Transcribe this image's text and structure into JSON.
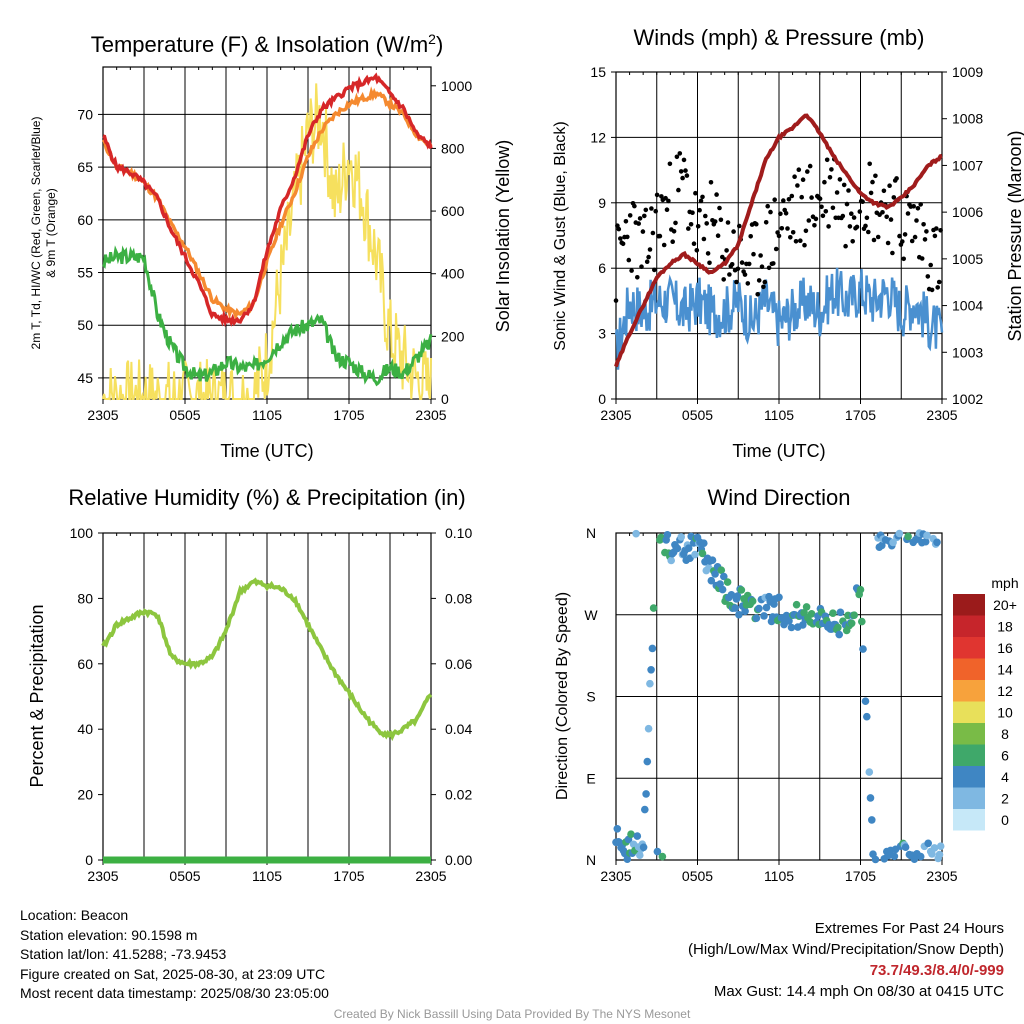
{
  "x_ticks": [
    "2305",
    "0505",
    "1105",
    "1705",
    "2305"
  ],
  "panels": {
    "temperature": {
      "title": "Temperature (F) & Insolation (W/m²)",
      "xlabel": "Time (UTC)",
      "ylabel_left_lines": [
        "2m T, Td, HI/WC (Red, Green, Scarlet/Blue)",
        "& 9m T (Orange)"
      ],
      "ylabel_right": "Solar Insolation (Yellow)"
    },
    "winds": {
      "title": "Winds (mph) & Pressure (mb)",
      "xlabel": "Time (UTC)",
      "ylabel_left": "Sonic Wind & Gust (Blue, Black)",
      "ylabel_right": "Station Pressure (Maroon)"
    },
    "humidity": {
      "title": "Relative Humidity (%) & Precipitation (in)",
      "ylabel_left": "Percent & Precipitation"
    },
    "direction": {
      "title": "Wind Direction",
      "ylabel_left": "Direction (Colored By Speed)",
      "legend_title": "mph"
    }
  },
  "colors": {
    "temp": "#d62728",
    "dewpoint": "#3cb043",
    "temp9m": "#f58a30",
    "solar": "#f6e05e",
    "hi_scarlet": "#c41e1e",
    "wc_blue": "#4a90d0",
    "wind": "#4a90d0",
    "gust": "#000000",
    "pressure": "#a01c1c",
    "rh": "#8dc63f",
    "precip": "#3cb043"
  },
  "chart_data": [
    {
      "type": "line",
      "id": "temperature",
      "title": "Temperature (F) & Insolation (W/m²)",
      "xlabel": "Time (UTC)",
      "x_hours": [
        0,
        1,
        2,
        3,
        4,
        5,
        6,
        7,
        8,
        9,
        10,
        11,
        12,
        13,
        14,
        15,
        16,
        17,
        18,
        19,
        20,
        21,
        22,
        23,
        24
      ],
      "ylim_left": [
        43,
        74.5
      ],
      "yticks_left": [
        45,
        50,
        55,
        60,
        65,
        70
      ],
      "ylim_right": [
        0,
        1060
      ],
      "yticks_right": [
        0,
        200,
        400,
        600,
        800,
        1000
      ],
      "series": [
        {
          "key": "temp",
          "values": [
            68,
            65,
            64.5,
            63.5,
            62,
            59,
            56.5,
            54,
            51,
            50.5,
            50.5,
            52,
            57,
            61,
            64,
            68,
            70.5,
            71.5,
            72.5,
            73,
            73.5,
            72,
            70.5,
            68,
            67
          ]
        },
        {
          "key": "temp9m",
          "values": [
            67.5,
            65,
            64.5,
            63.5,
            62,
            59.5,
            57.5,
            55,
            52.5,
            51.5,
            51,
            52,
            56,
            59.5,
            62.5,
            66,
            68.5,
            70,
            71,
            71.5,
            72,
            71,
            70,
            68,
            67
          ]
        },
        {
          "key": "dewpoint",
          "values": [
            56,
            56.5,
            56.5,
            56.5,
            51,
            48,
            46,
            45,
            45.5,
            46.5,
            46,
            46,
            47,
            48.5,
            49.5,
            50,
            50.5,
            47,
            46.5,
            45.5,
            45,
            46,
            45.5,
            47,
            48.5
          ]
        },
        {
          "key": "solar",
          "values": [
            0,
            0,
            0,
            0,
            0,
            0,
            0,
            0,
            0,
            0,
            0,
            5,
            120,
            380,
            620,
            850,
            900,
            620,
            780,
            650,
            450,
            200,
            120,
            60,
            30
          ]
        }
      ]
    },
    {
      "type": "line",
      "id": "winds",
      "title": "Winds (mph) & Pressure (mb)",
      "xlabel": "Time (UTC)",
      "ylim_left": [
        0,
        15
      ],
      "yticks_left": [
        0,
        3,
        6,
        9,
        12,
        15
      ],
      "ylim_right": [
        1002,
        1009
      ],
      "yticks_right": [
        1002,
        1003,
        1004,
        1005,
        1006,
        1007,
        1008,
        1009
      ],
      "series": [
        {
          "key": "wind",
          "values": [
            2,
            4.5,
            4,
            4.5,
            4.5,
            4,
            4.5,
            4,
            4,
            4.5,
            3.5,
            4.5,
            3.5,
            4,
            4.5,
            4,
            5,
            4.5,
            5,
            4.5,
            5,
            4,
            4.5,
            3.5,
            3
          ]
        },
        {
          "key": "gust",
          "values": [
            6,
            8,
            6.5,
            8,
            9,
            10,
            7.5,
            8,
            7,
            6.5,
            6,
            7,
            8,
            8.5,
            9,
            9,
            10,
            8.5,
            10,
            9,
            9,
            8,
            8,
            7,
            6
          ]
        },
        {
          "key": "pressure",
          "values": [
            1002.7,
            1003.4,
            1004,
            1004.6,
            1004.9,
            1005.1,
            1004.9,
            1004.7,
            1004.9,
            1005.3,
            1006.2,
            1007.1,
            1007.6,
            1007.8,
            1008.1,
            1007.7,
            1007.2,
            1006.8,
            1006.4,
            1006.2,
            1006.1,
            1006.3,
            1006.6,
            1007,
            1007.2
          ]
        }
      ]
    },
    {
      "type": "line",
      "id": "humidity",
      "title": "Relative Humidity (%) & Precipitation (in)",
      "ylim_left": [
        0,
        100
      ],
      "yticks_left": [
        0,
        20,
        40,
        60,
        80,
        100
      ],
      "ylim_right": [
        0,
        0.1
      ],
      "yticks_right": [
        "0.00",
        "0.02",
        "0.04",
        "0.06",
        "0.08",
        "0.10"
      ],
      "series": [
        {
          "key": "rh",
          "values": [
            65,
            72,
            74,
            76,
            75,
            62,
            60,
            60,
            62,
            70,
            82,
            85,
            84,
            83,
            80,
            72,
            64,
            57,
            51,
            45,
            40,
            38,
            40,
            43,
            51
          ]
        },
        {
          "key": "precip",
          "values": [
            0,
            0,
            0,
            0,
            0,
            0,
            0,
            0,
            0,
            0,
            0,
            0,
            0,
            0,
            0,
            0,
            0,
            0,
            0,
            0,
            0,
            0,
            0,
            0,
            0
          ]
        }
      ]
    },
    {
      "type": "scatter",
      "id": "direction",
      "title": "Wind Direction",
      "y_labels": [
        "N",
        "E",
        "S",
        "W",
        "N"
      ],
      "direction_deg": [
        20,
        15,
        10,
        355,
        345,
        340,
        350,
        320,
        300,
        285,
        280,
        275,
        275,
        270,
        270,
        270,
        265,
        260,
        300,
        345,
        355,
        10,
        355,
        5,
        0
      ],
      "speed_mph": [
        3,
        4,
        3,
        5,
        4,
        3,
        4,
        4,
        5,
        4,
        5,
        4,
        4,
        4,
        5,
        5,
        4,
        5,
        5,
        4,
        3,
        4,
        4,
        3,
        2
      ],
      "legend_levels": [
        "20+",
        "18",
        "16",
        "14",
        "12",
        "10",
        "8",
        "6",
        "4",
        "2",
        "0"
      ],
      "legend_colors": [
        "#9b1b1b",
        "#c6252b",
        "#e03530",
        "#f0632a",
        "#f7a23c",
        "#e8e05a",
        "#79bb47",
        "#3fa86a",
        "#3f86c3",
        "#7fb8e2",
        "#c6e8f8"
      ]
    }
  ],
  "footer": {
    "location": "Location: Beacon",
    "elevation": "Station elevation: 90.1598 m",
    "latlon": "Station lat/lon: 41.5288; -73.9453",
    "created": "Figure created on Sat, 2025-08-30, at 23:09 UTC",
    "recent": "Most recent data timestamp: 2025/08/30 23:05:00",
    "extremes_title": "Extremes For Past 24 Hours",
    "extremes_sub": "(High/Low/Max Wind/Precipitation/Snow Depth)",
    "extremes_values": "73.7/49.3/8.4/0/-999",
    "max_gust": "Max Gust: 14.4 mph On 08/30 at 0415 UTC",
    "credit": "Created By Nick Bassill Using Data Provided By The NYS Mesonet"
  }
}
